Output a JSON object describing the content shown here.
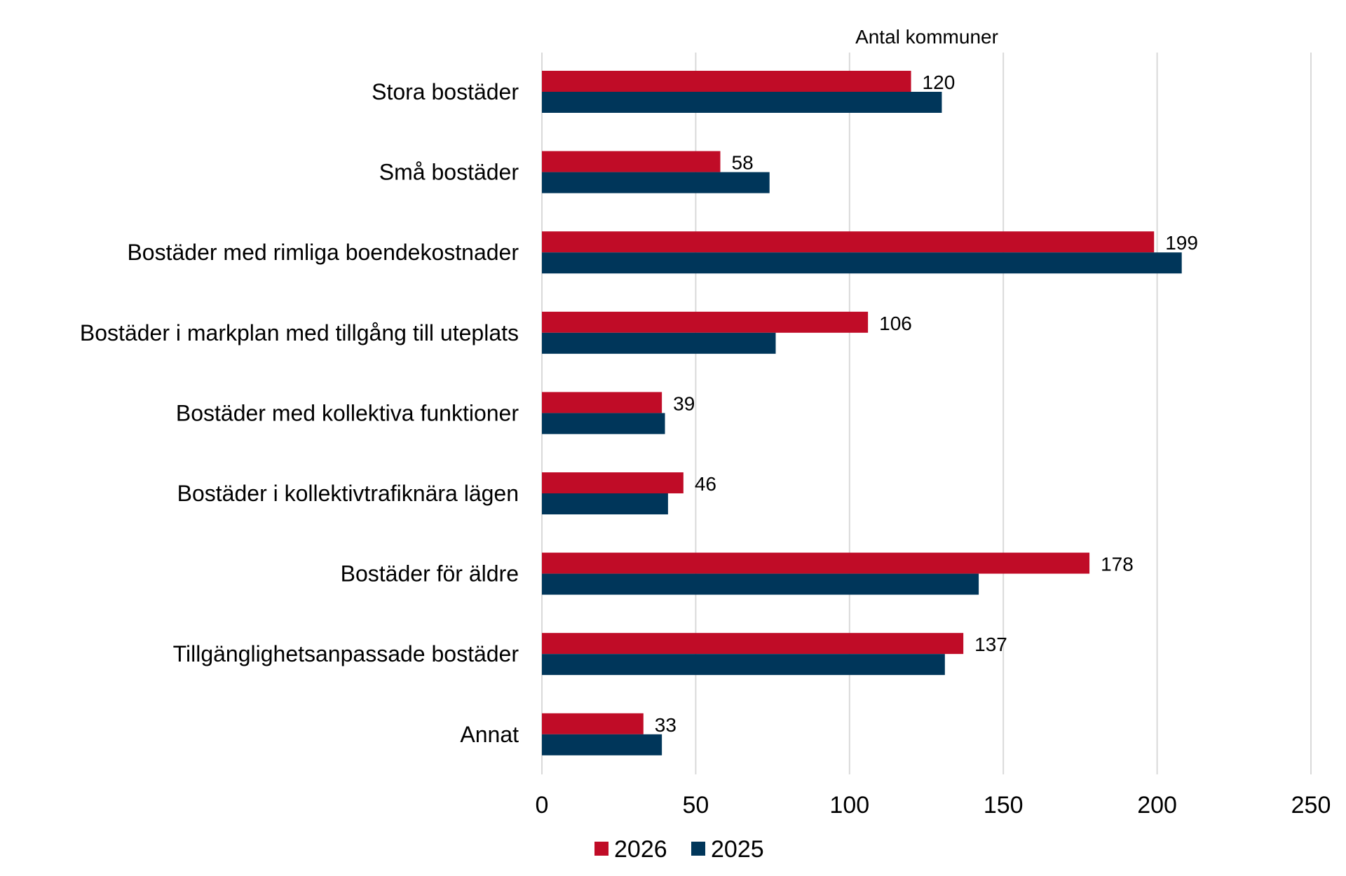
{
  "chart_data": {
    "type": "bar",
    "orientation": "horizontal",
    "title": "",
    "xlabel": "Antal kommuner",
    "xaxis_position": "top",
    "ylabel": "",
    "xlim": [
      0,
      250
    ],
    "xticks": [
      "0",
      "50",
      "100",
      "150",
      "200",
      "250"
    ],
    "grid": true,
    "legend_placement": "bottom",
    "categories": [
      "Stora bostäder",
      "Små bostäder",
      "Bostäder med rimliga boendekostnader",
      "Bostäder i markplan med tillgång till uteplats",
      "Bostäder med kollektiva funktioner",
      "Bostäder i kollektivtrafiknära lägen",
      "Bostäder för äldre",
      "Tillgänglighetsanpassade bostäder",
      "Annat"
    ],
    "series": [
      {
        "name": "2026",
        "color": "#c00c27",
        "values": [
          120,
          58,
          199,
          106,
          39,
          46,
          178,
          137,
          33
        ],
        "labels": [
          "120",
          "58",
          "199",
          "106",
          "39",
          "46",
          "178",
          "137",
          "33"
        ]
      },
      {
        "name": "2025",
        "color": "#00365a",
        "values": [
          130,
          74,
          208,
          76,
          40,
          41,
          142,
          131,
          39
        ]
      }
    ]
  }
}
